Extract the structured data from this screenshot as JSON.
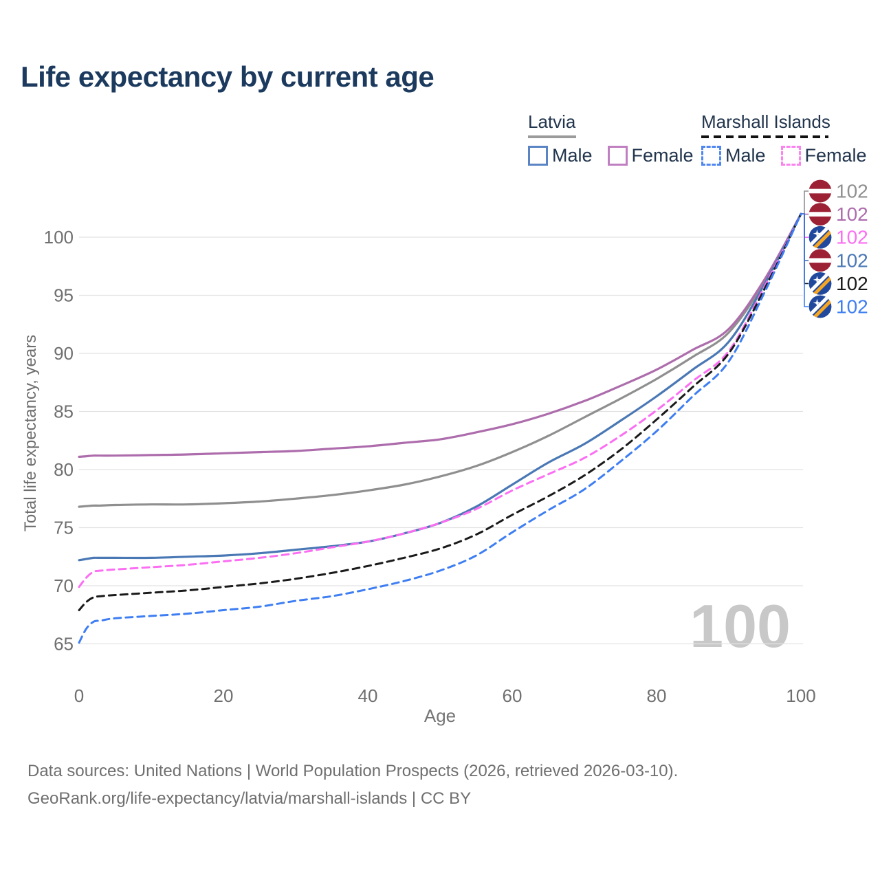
{
  "page": {
    "title": "Life expectancy by current age"
  },
  "legend": {
    "groups": [
      {
        "country": "Latvia",
        "line_style": "solid",
        "line_color": "#9b9b9b",
        "items": [
          {
            "label": "Male",
            "color": "#5b84c4",
            "dashed": false
          },
          {
            "label": "Female",
            "color": "#c07fc0",
            "dashed": false
          }
        ]
      },
      {
        "country": "Marshall Islands",
        "line_style": "dashed",
        "line_color": "#111111",
        "items": [
          {
            "label": "Male",
            "color": "#4f86f0",
            "dashed": true
          },
          {
            "label": "Female",
            "color": "#fb83f0",
            "dashed": true
          }
        ]
      }
    ]
  },
  "chart_data": {
    "type": "line",
    "title": "Life expectancy by current age",
    "xlabel": "Age",
    "ylabel": "Total life expectancy, years",
    "x_ticks": [
      0,
      20,
      40,
      60,
      80,
      100
    ],
    "y_ticks": [
      65,
      70,
      75,
      80,
      85,
      90,
      95,
      100
    ],
    "xlim": [
      0,
      100
    ],
    "ylim": [
      65,
      102
    ],
    "grid": "horizontal",
    "legend_position": "top-right",
    "ages": [
      0,
      1,
      2,
      3,
      5,
      10,
      15,
      20,
      25,
      30,
      35,
      40,
      45,
      50,
      55,
      60,
      65,
      70,
      75,
      80,
      85,
      90,
      95,
      100
    ],
    "series": [
      {
        "id": "latvia-both",
        "label": "Latvia",
        "country": "Latvia",
        "sex": "Both",
        "color": "#8f8f8f",
        "dashed": false,
        "flag": "latvia",
        "end_value": 102,
        "label_row": 0,
        "values": [
          76.8,
          76.85,
          76.9,
          76.9,
          76.95,
          77.0,
          77.0,
          77.1,
          77.25,
          77.5,
          77.8,
          78.2,
          78.7,
          79.4,
          80.3,
          81.5,
          82.9,
          84.5,
          86.1,
          87.8,
          89.7,
          91.8,
          96.2,
          102
        ]
      },
      {
        "id": "latvia-female",
        "label": "Latvia Female",
        "country": "Latvia",
        "sex": "Female",
        "color": "#ad6cac",
        "dashed": false,
        "flag": "latvia",
        "end_value": 102,
        "label_row": 1,
        "values": [
          81.1,
          81.15,
          81.2,
          81.2,
          81.2,
          81.25,
          81.3,
          81.4,
          81.5,
          81.6,
          81.8,
          82.0,
          82.3,
          82.6,
          83.2,
          83.9,
          84.8,
          85.9,
          87.2,
          88.6,
          90.3,
          92.1,
          96.4,
          102
        ]
      },
      {
        "id": "mi-female",
        "label": "Marshall Islands Female",
        "country": "Marshall Islands",
        "sex": "Female",
        "color": "#fb6ef2",
        "dashed": true,
        "flag": "marshall-islands",
        "end_value": 102,
        "label_row": 2,
        "values": [
          69.9,
          70.7,
          71.2,
          71.3,
          71.4,
          71.6,
          71.8,
          72.1,
          72.4,
          72.8,
          73.3,
          73.8,
          74.5,
          75.4,
          76.6,
          78.2,
          79.6,
          81.0,
          82.9,
          85.1,
          87.6,
          90.2,
          95.8,
          102
        ]
      },
      {
        "id": "latvia-male",
        "label": "Latvia Male",
        "country": "Latvia",
        "sex": "Male",
        "color": "#4a78b5",
        "dashed": false,
        "flag": "latvia",
        "end_value": 102,
        "label_row": 3,
        "values": [
          72.2,
          72.3,
          72.4,
          72.4,
          72.4,
          72.4,
          72.5,
          72.6,
          72.8,
          73.1,
          73.4,
          73.8,
          74.5,
          75.4,
          76.8,
          78.7,
          80.6,
          82.2,
          84.2,
          86.3,
          88.6,
          91.0,
          96.0,
          102
        ]
      },
      {
        "id": "mi-both",
        "label": "Marshall Islands",
        "country": "Marshall Islands",
        "sex": "Both",
        "color": "#1a1a1a",
        "dashed": true,
        "flag": "marshall-islands",
        "end_value": 102,
        "label_row": 4,
        "values": [
          67.9,
          68.6,
          69.0,
          69.1,
          69.2,
          69.4,
          69.6,
          69.9,
          70.2,
          70.6,
          71.1,
          71.7,
          72.4,
          73.2,
          74.4,
          76.1,
          77.7,
          79.5,
          81.7,
          84.3,
          87.1,
          90.0,
          95.6,
          102
        ]
      },
      {
        "id": "mi-male",
        "label": "Marshall Islands Male",
        "country": "Marshall Islands",
        "sex": "Male",
        "color": "#3e7ef2",
        "dashed": true,
        "flag": "marshall-islands",
        "end_value": 102,
        "label_row": 5,
        "values": [
          65.1,
          66.3,
          66.9,
          67.0,
          67.2,
          67.4,
          67.6,
          67.9,
          68.2,
          68.7,
          69.1,
          69.7,
          70.4,
          71.3,
          72.6,
          74.6,
          76.5,
          78.3,
          80.7,
          83.3,
          86.3,
          89.3,
          95.3,
          102
        ]
      }
    ]
  },
  "watermark": "100",
  "footer": {
    "line1": "Data sources: United Nations | World Population Prospects (2026, retrieved 2026-03-10).",
    "line2": "GeoRank.org/life-expectancy/latvia/marshall-islands | CC BY"
  },
  "colors": {
    "title_text": "#1b3a5e",
    "legend_text": "#22354d",
    "axis_text": "#757575",
    "grid_line": "#e2e2e2",
    "watermark": "#c8c8c8",
    "footer_text": "#6f6f6f",
    "latvia_flag_red": "#9d2135",
    "marshall_flag_blue": "#20489c",
    "marshall_flag_orange": "#f5a623"
  }
}
